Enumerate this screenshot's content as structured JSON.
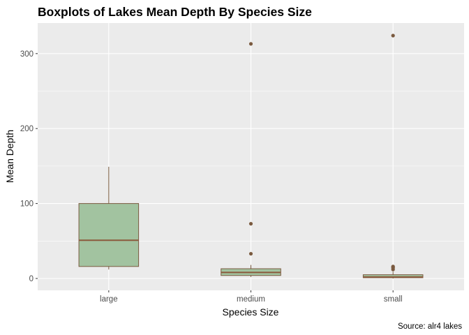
{
  "chart_data": {
    "type": "boxplot",
    "title": "Boxplots of Lakes Mean Depth By Species Size",
    "xlabel": "Species Size",
    "ylabel": "Mean Depth",
    "caption": "Source: alr4 lakes",
    "categories": [
      "large",
      "medium",
      "small"
    ],
    "ylim": [
      -15,
      325
    ],
    "yticks": [
      0,
      100,
      200,
      300
    ],
    "grid": true,
    "colors": {
      "panel_bg": "#ebebeb",
      "grid_major": "#ffffff",
      "box_fill": "#a2c3a0",
      "box_outline": "#7a5a3f",
      "median": "#8b5a3c",
      "outlier": "#7a5a3f",
      "tick_label": "#4d4d4d"
    },
    "boxes": [
      {
        "category": "large",
        "lower_whisker": 12,
        "q1": 16,
        "median": 51,
        "q3": 100,
        "upper_whisker": 149,
        "outliers": []
      },
      {
        "category": "medium",
        "lower_whisker": 2,
        "q1": 4,
        "median": 8,
        "q3": 13,
        "upper_whisker": 18,
        "outliers": [
          33,
          73,
          313
        ]
      },
      {
        "category": "small",
        "lower_whisker": 0,
        "q1": 1,
        "median": 2,
        "q3": 5,
        "upper_whisker": 9,
        "outliers": [
          12,
          14,
          15,
          16,
          324
        ]
      }
    ]
  }
}
